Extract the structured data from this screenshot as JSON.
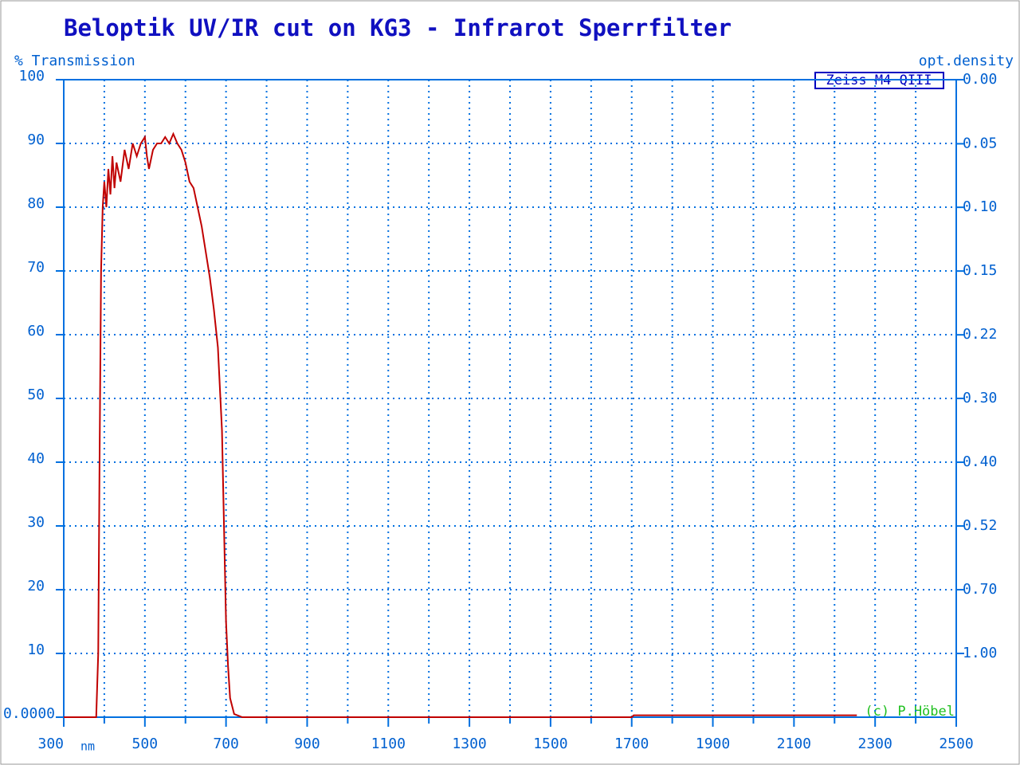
{
  "chart_data": {
    "type": "line",
    "title": "Beloptik UV/IR cut on KG3 - Infrarot Sperrfilter",
    "y_label": "% Transmission",
    "y2_label": "opt.density",
    "x_unit": "nm",
    "legend_box": "Zeiss M4 QIII",
    "copyright": "(c) P.Höbel",
    "xlim": [
      300,
      2500
    ],
    "xticks": [
      300,
      500,
      700,
      900,
      1100,
      1300,
      1500,
      1700,
      1900,
      2100,
      2300,
      2500
    ],
    "x_minor_ticks": [
      400,
      600,
      800,
      1000,
      1200,
      1400,
      1600,
      1800,
      2000,
      2200,
      2400
    ],
    "ylim": [
      0,
      100
    ],
    "yticks": [
      {
        "value": 0,
        "label": "0.0000"
      },
      10,
      20,
      30,
      40,
      50,
      60,
      70,
      80,
      90,
      100
    ],
    "y2ticks": [
      {
        "value": 0,
        "label": "0.00"
      },
      {
        "value": 0.046,
        "label": "0.05"
      },
      {
        "value": 0.097,
        "label": "0.10"
      },
      {
        "value": 0.155,
        "label": "0.15"
      },
      {
        "value": 0.222,
        "label": "0.22"
      },
      {
        "value": 0.301,
        "label": "0.30"
      },
      {
        "value": 0.398,
        "label": "0.40"
      },
      {
        "value": 0.523,
        "label": "0.52"
      },
      {
        "value": 0.699,
        "label": "0.70"
      },
      {
        "value": 1.0,
        "label": "1.00"
      }
    ],
    "grid": true,
    "series": [
      {
        "name": "Transmission",
        "color": "#c00000",
        "x": [
          300,
          380,
          385,
          388,
          392,
          396,
          400,
          405,
          410,
          415,
          420,
          425,
          430,
          440,
          450,
          460,
          470,
          480,
          490,
          500,
          505,
          510,
          520,
          530,
          540,
          550,
          560,
          570,
          580,
          590,
          600,
          610,
          620,
          630,
          640,
          650,
          660,
          670,
          680,
          690,
          695,
          700,
          705,
          710,
          720,
          740,
          1700,
          1705,
          2255
        ],
        "values": [
          0,
          0,
          10,
          38,
          70,
          80,
          84,
          80,
          86,
          82,
          88,
          83,
          87,
          84,
          89,
          86,
          90,
          88,
          90,
          91,
          88,
          86,
          89,
          90,
          90,
          91,
          90,
          91.5,
          90,
          89,
          87,
          84,
          83,
          80,
          77,
          73,
          69,
          64,
          58,
          45,
          30,
          15,
          8,
          3,
          0.5,
          0,
          0,
          0.3,
          0.3
        ]
      }
    ]
  }
}
